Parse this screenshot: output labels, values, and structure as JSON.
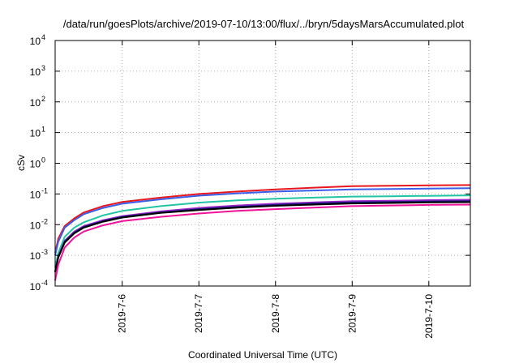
{
  "chart_data": {
    "type": "line",
    "title": "/data/run/goesPlots/archive/2019-07-10/13:00/flux/../bryn/5daysMarsAccumulated.plot",
    "xlabel": "Coordinated Universal Time (UTC)",
    "ylabel": "cSv",
    "yscale": "log",
    "ylim": [
      0.0001,
      10000
    ],
    "xlim": [
      "2019-07-05 03:00",
      "2019-07-10 13:00"
    ],
    "x_ticks": [
      "2019-7-6",
      "2019-7-7",
      "2019-7-8",
      "2019-7-9",
      "2019-7-10"
    ],
    "y_ticks": [
      {
        "base": "10",
        "exp": "-4",
        "value": 0.0001
      },
      {
        "base": "10",
        "exp": "-3",
        "value": 0.001
      },
      {
        "base": "10",
        "exp": "-2",
        "value": 0.01
      },
      {
        "base": "10",
        "exp": "-1",
        "value": 0.1
      },
      {
        "base": "10",
        "exp": "0",
        "value": 1
      },
      {
        "base": "10",
        "exp": "1",
        "value": 10
      },
      {
        "base": "10",
        "exp": "2",
        "value": 100
      },
      {
        "base": "10",
        "exp": "3",
        "value": 1000
      },
      {
        "base": "10",
        "exp": "4",
        "value": 10000
      }
    ],
    "grid": true,
    "x": [
      "2019-07-05 03:00",
      "2019-07-05 04:00",
      "2019-07-05 06:00",
      "2019-07-05 09:00",
      "2019-07-05 12:00",
      "2019-07-05 18:00",
      "2019-07-06 00:00",
      "2019-07-06 12:00",
      "2019-07-07 00:00",
      "2019-07-07 12:00",
      "2019-07-08 00:00",
      "2019-07-08 12:00",
      "2019-07-09 00:00",
      "2019-07-09 12:00",
      "2019-07-10 00:00",
      "2019-07-10 13:00"
    ],
    "series": [
      {
        "color": "#e8171e",
        "values": [
          0.0012,
          0.0035,
          0.009,
          0.016,
          0.025,
          0.04,
          0.055,
          0.076,
          0.1,
          0.12,
          0.14,
          0.16,
          0.18,
          0.185,
          0.19,
          0.195
        ]
      },
      {
        "color": "#3a5ee8",
        "values": [
          0.001,
          0.0028,
          0.008,
          0.014,
          0.022,
          0.035,
          0.048,
          0.067,
          0.088,
          0.105,
          0.12,
          0.13,
          0.14,
          0.145,
          0.15,
          0.155
        ]
      },
      {
        "color": "#21c5a3",
        "values": [
          0.0004,
          0.0012,
          0.004,
          0.008,
          0.012,
          0.02,
          0.028,
          0.04,
          0.052,
          0.062,
          0.07,
          0.076,
          0.082,
          0.084,
          0.087,
          0.09
        ]
      },
      {
        "color": "#9c27c9",
        "values": [
          0.0003,
          0.0009,
          0.003,
          0.006,
          0.009,
          0.014,
          0.019,
          0.027,
          0.035,
          0.042,
          0.048,
          0.053,
          0.058,
          0.06,
          0.063,
          0.065
        ]
      },
      {
        "color": "#1a1a80",
        "values": [
          0.0003,
          0.0009,
          0.0028,
          0.0055,
          0.0085,
          0.013,
          0.018,
          0.025,
          0.032,
          0.038,
          0.044,
          0.049,
          0.053,
          0.055,
          0.057,
          0.058
        ]
      },
      {
        "color": "#000000",
        "values": [
          0.00028,
          0.00085,
          0.0026,
          0.0052,
          0.008,
          0.0125,
          0.017,
          0.024,
          0.03,
          0.036,
          0.041,
          0.045,
          0.049,
          0.051,
          0.053,
          0.054
        ]
      },
      {
        "color": "#f0139a",
        "values": [
          0.00015,
          0.0005,
          0.0018,
          0.0038,
          0.006,
          0.0095,
          0.013,
          0.018,
          0.023,
          0.028,
          0.032,
          0.036,
          0.04,
          0.042,
          0.044,
          0.045
        ]
      }
    ]
  }
}
